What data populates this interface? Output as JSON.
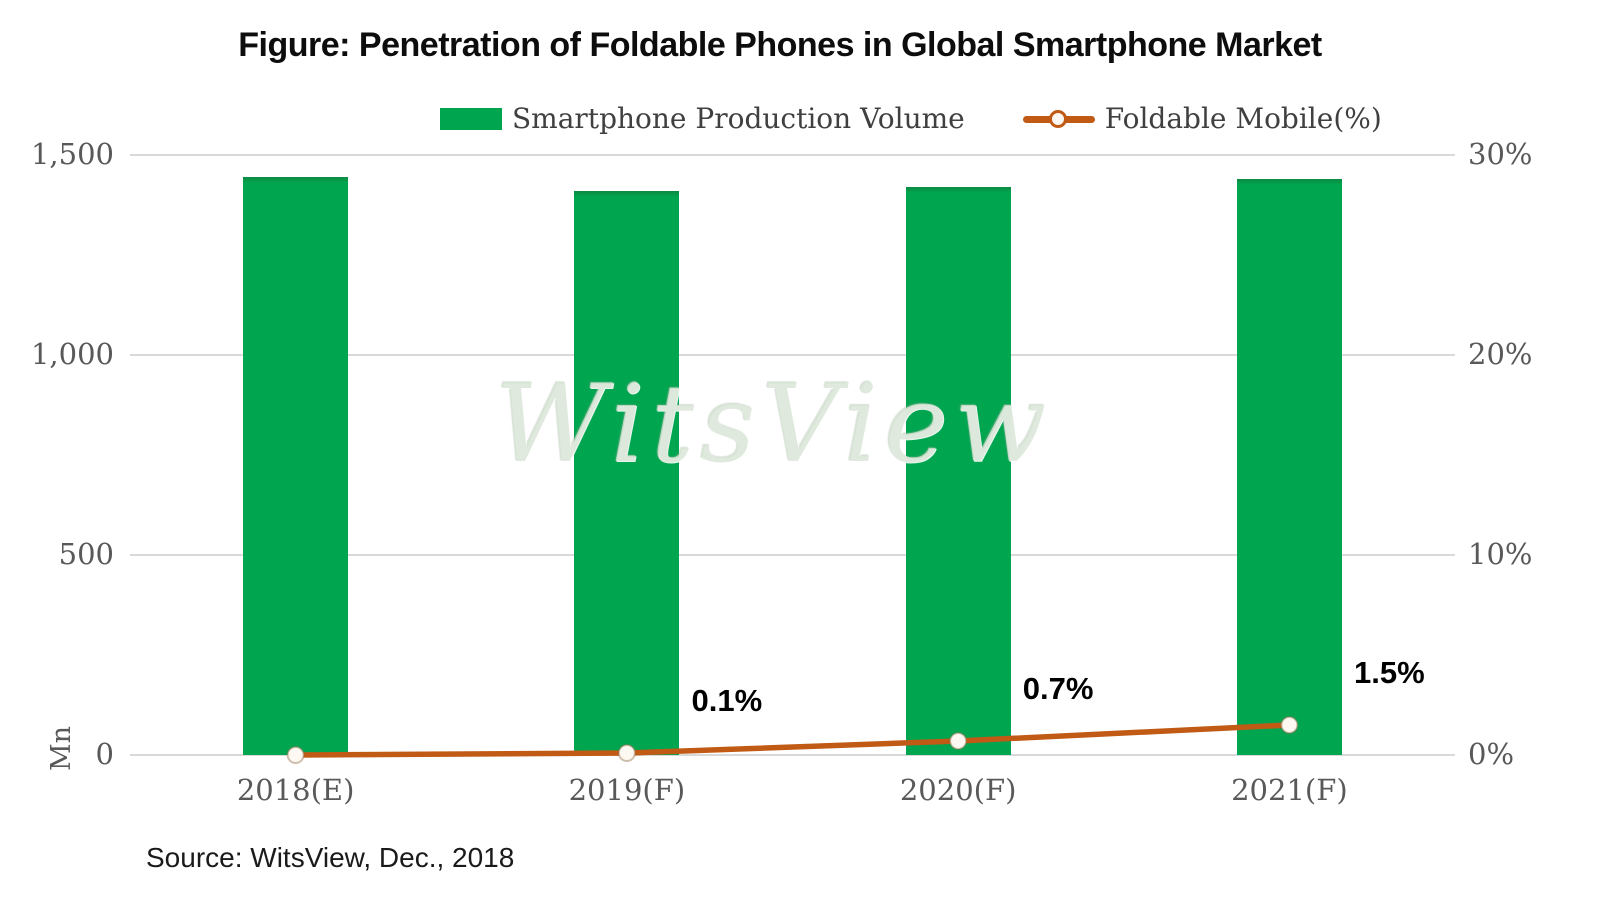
{
  "title": "Figure: Penetration of Foldable Phones in Global Smartphone Market",
  "source": "Source: WitsView, Dec., 2018",
  "watermark": "WitsView",
  "colors": {
    "bar_green": "#00A550",
    "bar_green_dark": "#0b8a43",
    "line_orange": "#C05A15",
    "grid_gray": "#d9d9d9",
    "axis_text": "#595959"
  },
  "legend": {
    "items": [
      {
        "label": "Smartphone Production Volume",
        "type": "bar"
      },
      {
        "label": "Foldable Mobile(%)",
        "type": "line"
      }
    ]
  },
  "chart_data": {
    "type": "bar+line combo",
    "title": "Figure: Penetration of Foldable Phones in Global Smartphone Market",
    "categories": [
      "2018(E)",
      "2019(F)",
      "2020(F)",
      "2021(F)"
    ],
    "series": [
      {
        "name": "Smartphone Production Volume",
        "type": "bar",
        "axis": "left",
        "unit": "Mn",
        "values": [
          1445,
          1410,
          1420,
          1440
        ]
      },
      {
        "name": "Foldable Mobile(%)",
        "type": "line",
        "axis": "right",
        "unit": "%",
        "values": [
          0.0,
          0.1,
          0.7,
          1.5
        ],
        "point_labels": [
          null,
          "0.1%",
          "0.7%",
          "1.5%"
        ]
      }
    ],
    "left_axis": {
      "label": "Mn",
      "min": 0,
      "max": 1500,
      "ticks": [
        "0",
        "500",
        "1,000",
        "1,500"
      ]
    },
    "right_axis": {
      "min": 0,
      "max": 30,
      "ticks": [
        "0%",
        "10%",
        "20%",
        "30%"
      ]
    },
    "grid": true,
    "legend_position": "top"
  }
}
